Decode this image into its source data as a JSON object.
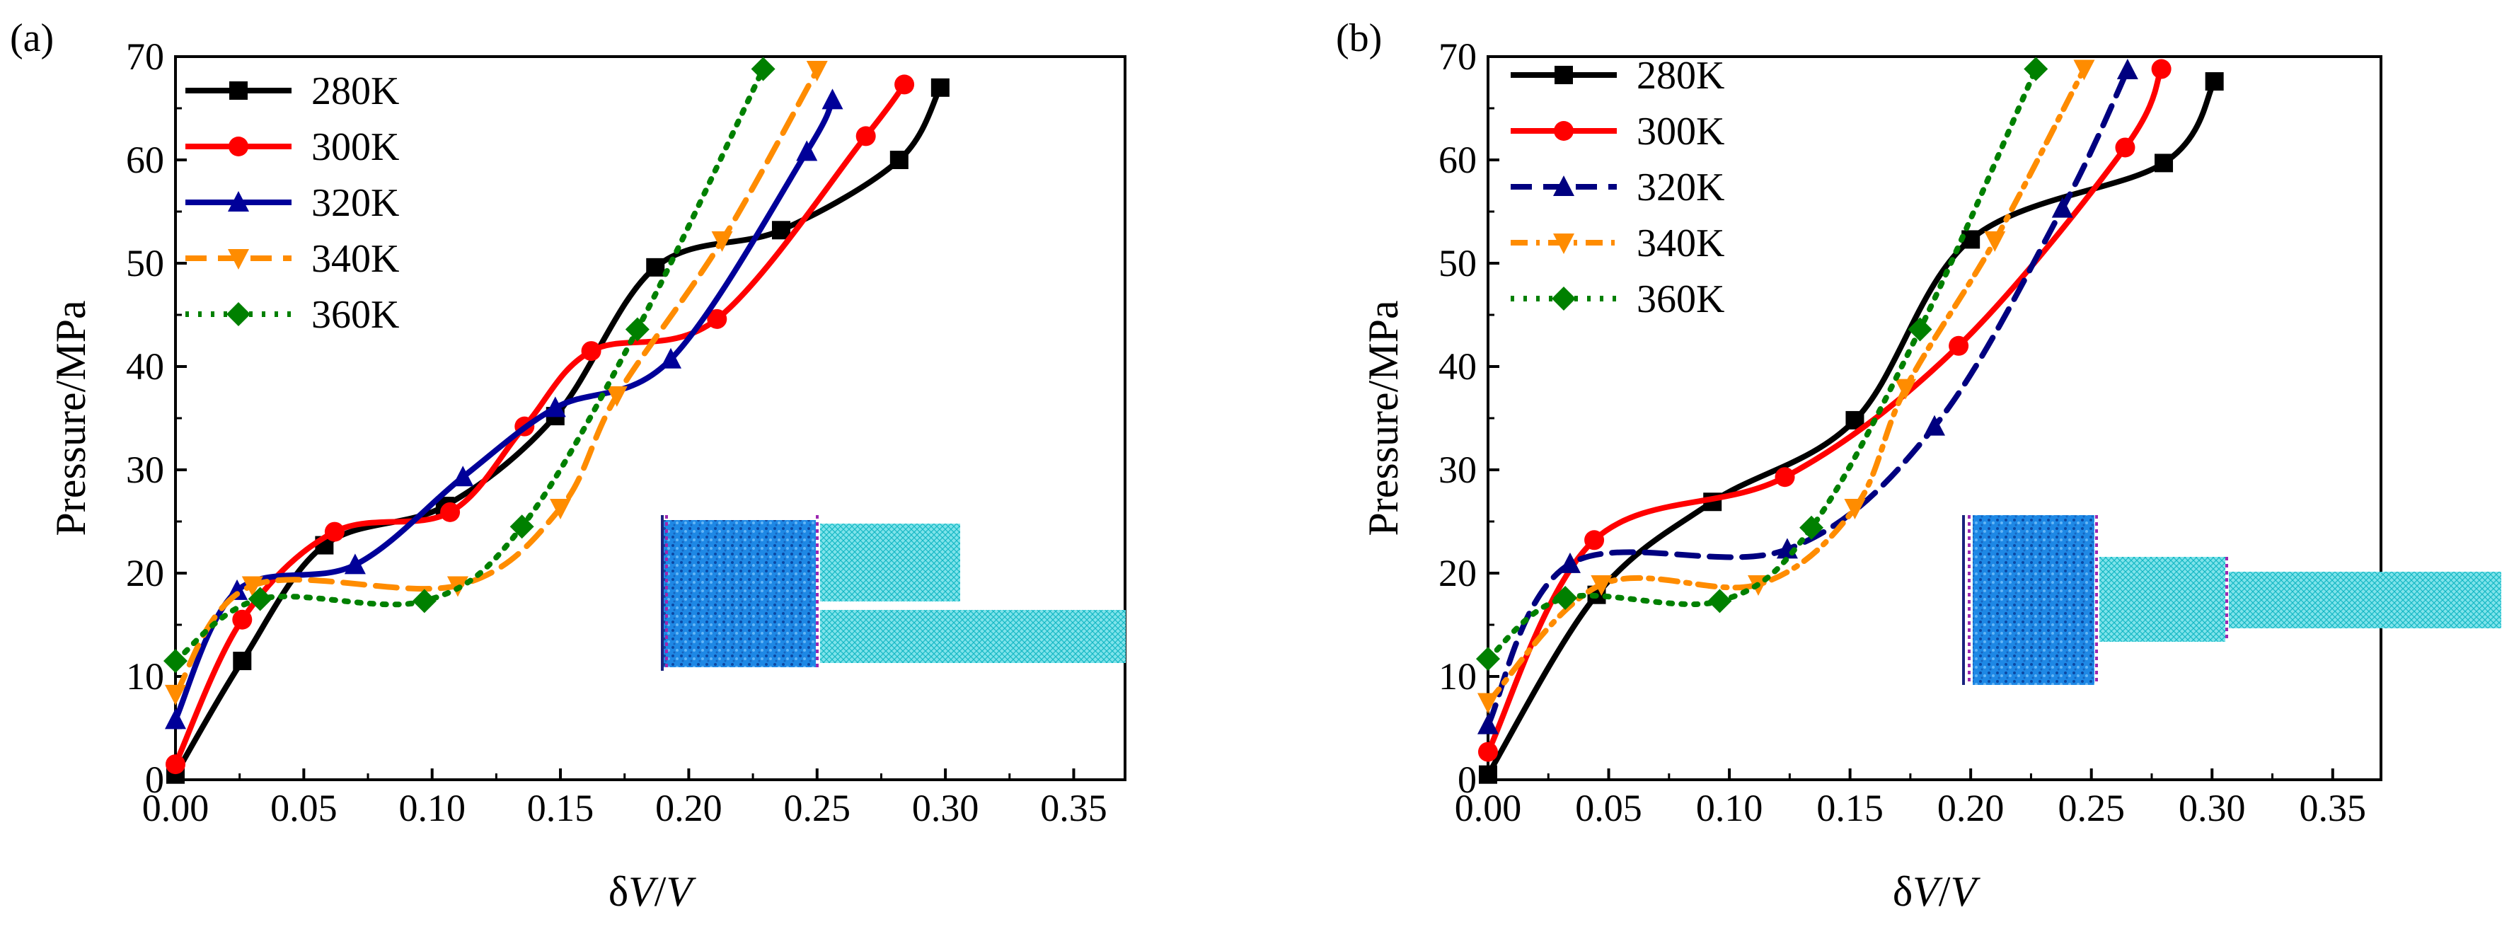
{
  "chart_data": [
    {
      "type": "line",
      "panel_label": "(a)",
      "xlabel_prefix": "δ",
      "xlabel_v1": "V",
      "xlabel_slash": "/",
      "xlabel_v2": "V",
      "ylabel": "Pressure/MPa",
      "xlim": [
        0,
        0.37
      ],
      "ylim": [
        0,
        70
      ],
      "xticks": [
        "0.00",
        "0.05",
        "0.10",
        "0.15",
        "0.20",
        "0.25",
        "0.30",
        "0.35"
      ],
      "yticks": [
        "0",
        "10",
        "20",
        "30",
        "40",
        "50",
        "60",
        "70"
      ],
      "legend_position": "top-left",
      "inset": "nanochannel-simulation-schematic",
      "series": [
        {
          "name": "280K",
          "color": "#000000",
          "marker": "square",
          "dash": "solid",
          "x": [
            0,
            0.026,
            0.058,
            0.105,
            0.148,
            0.187,
            0.236,
            0.282,
            0.298
          ],
          "y": [
            0.5,
            11.5,
            22.7,
            26.5,
            35.2,
            49.6,
            53.2,
            60,
            67
          ]
        },
        {
          "name": "300K",
          "color": "#ff0000",
          "marker": "circle",
          "dash": "solid",
          "x": [
            0,
            0.026,
            0.062,
            0.107,
            0.136,
            0.162,
            0.211,
            0.269,
            0.284
          ],
          "y": [
            1.5,
            15.5,
            24,
            25.9,
            34.2,
            41.5,
            44.6,
            62.3,
            67.3
          ]
        },
        {
          "name": "320K",
          "color": "#000099",
          "marker": "triangle-up",
          "dash": "solid",
          "x": [
            0,
            0.024,
            0.07,
            0.112,
            0.148,
            0.193,
            0.246,
            0.256
          ],
          "y": [
            5.8,
            18.3,
            20.8,
            29.3,
            36,
            40.7,
            60.8,
            65.8
          ]
        },
        {
          "name": "340K",
          "color": "#ff8c00",
          "marker": "triangle-down",
          "dash": "dash",
          "x": [
            0,
            0.03,
            0.11,
            0.15,
            0.172,
            0.213,
            0.25
          ],
          "y": [
            8.3,
            18.8,
            18.8,
            26.3,
            37.2,
            52.2,
            68.7
          ]
        },
        {
          "name": "360K",
          "color": "#008000",
          "marker": "diamond",
          "dash": "dot",
          "x": [
            0,
            0.033,
            0.097,
            0.135,
            0.18,
            0.229
          ],
          "y": [
            11.5,
            17.5,
            17.3,
            24.5,
            43.6,
            68.8
          ]
        }
      ]
    },
    {
      "type": "line",
      "panel_label": "(b)",
      "xlabel_prefix": "δ",
      "xlabel_v1": "V",
      "xlabel_slash": "/",
      "xlabel_v2": "V",
      "ylabel": "Pressure/MPa",
      "xlim": [
        0,
        0.37
      ],
      "ylim": [
        0,
        70
      ],
      "xticks": [
        "0.00",
        "0.05",
        "0.10",
        "0.15",
        "0.20",
        "0.25",
        "0.30",
        "0.35"
      ],
      "yticks": [
        "0",
        "10",
        "20",
        "30",
        "40",
        "50",
        "60",
        "70"
      ],
      "legend_position": "top-left",
      "inset": "nanochannel-simulation-schematic",
      "series": [
        {
          "name": "280K",
          "color": "#000000",
          "marker": "square",
          "dash": "solid",
          "x": [
            0,
            0.045,
            0.093,
            0.152,
            0.2,
            0.28,
            0.301
          ],
          "y": [
            0.5,
            17.9,
            26.9,
            34.8,
            52.3,
            59.7,
            67.6
          ]
        },
        {
          "name": "300K",
          "color": "#ff0000",
          "marker": "circle",
          "dash": "solid",
          "x": [
            0,
            0.044,
            0.123,
            0.195,
            0.264,
            0.279
          ],
          "y": [
            2.7,
            23.2,
            29.3,
            42,
            61.2,
            68.8
          ]
        },
        {
          "name": "320K",
          "color": "#000080",
          "marker": "triangle-up",
          "dash": "dash",
          "x": [
            0,
            0.034,
            0.124,
            0.185,
            0.238,
            0.265
          ],
          "y": [
            5.3,
            20.9,
            22.3,
            34.2,
            55.3,
            68.7
          ]
        },
        {
          "name": "340K",
          "color": "#ff8c00",
          "marker": "triangle-down",
          "dash": "dashdot",
          "x": [
            0,
            0.047,
            0.112,
            0.152,
            0.173,
            0.21,
            0.247
          ],
          "y": [
            7.5,
            18.9,
            18.9,
            26.3,
            37.9,
            52.2,
            68.8
          ]
        },
        {
          "name": "360K",
          "color": "#008000",
          "marker": "diamond",
          "dash": "dot",
          "x": [
            0,
            0.032,
            0.096,
            0.134,
            0.179,
            0.227
          ],
          "y": [
            11.7,
            17.6,
            17.3,
            24.4,
            43.6,
            68.8
          ]
        }
      ]
    }
  ]
}
